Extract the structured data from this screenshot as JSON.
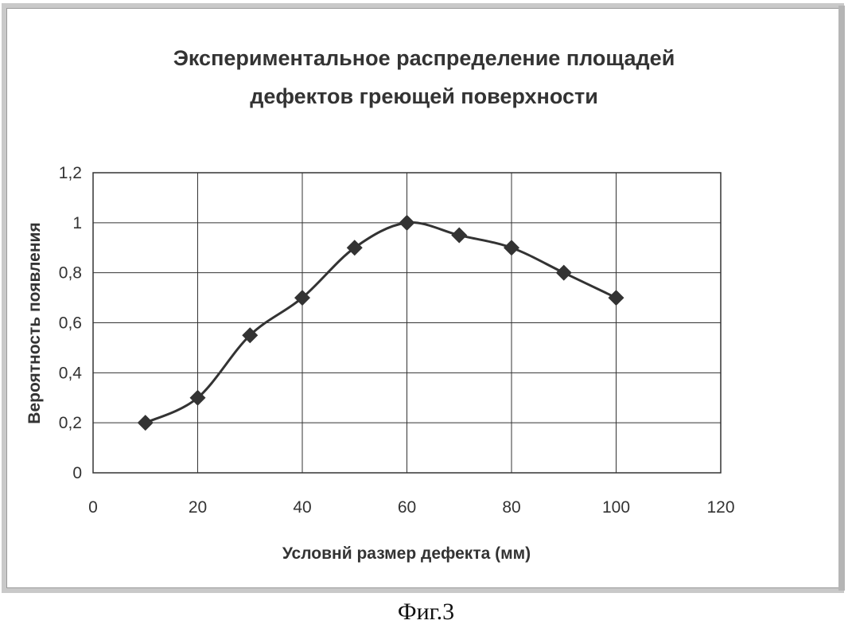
{
  "caption": "Фиг.3",
  "chart_data": {
    "type": "line",
    "title_lines": [
      "Экспериментальное распределение площадей",
      "дефектов греющей поверхности"
    ],
    "xlabel": "Условнй размер дефекта (мм)",
    "ylabel": "Вероятность появления",
    "xlim": [
      0,
      120
    ],
    "ylim": [
      0,
      1.2
    ],
    "xticks": [
      0,
      20,
      40,
      60,
      80,
      100,
      120
    ],
    "yticks": [
      0,
      0.2,
      0.4,
      0.6,
      0.8,
      1,
      1.2
    ],
    "xtick_labels": [
      "0",
      "20",
      "40",
      "60",
      "80",
      "100",
      "120"
    ],
    "ytick_labels": [
      "0",
      "0,2",
      "0,4",
      "0,6",
      "0,8",
      "1",
      "1,2"
    ],
    "grid": true,
    "marker": "diamond",
    "series": [
      {
        "x": [
          10,
          20,
          30,
          40,
          50,
          60,
          70,
          80,
          90,
          100
        ],
        "values": [
          0.2,
          0.3,
          0.55,
          0.7,
          0.9,
          1.0,
          0.95,
          0.9,
          0.8,
          0.7
        ]
      }
    ],
    "colors": {
      "line": "#333333",
      "grid": "#333333",
      "marker": "#333333"
    }
  }
}
